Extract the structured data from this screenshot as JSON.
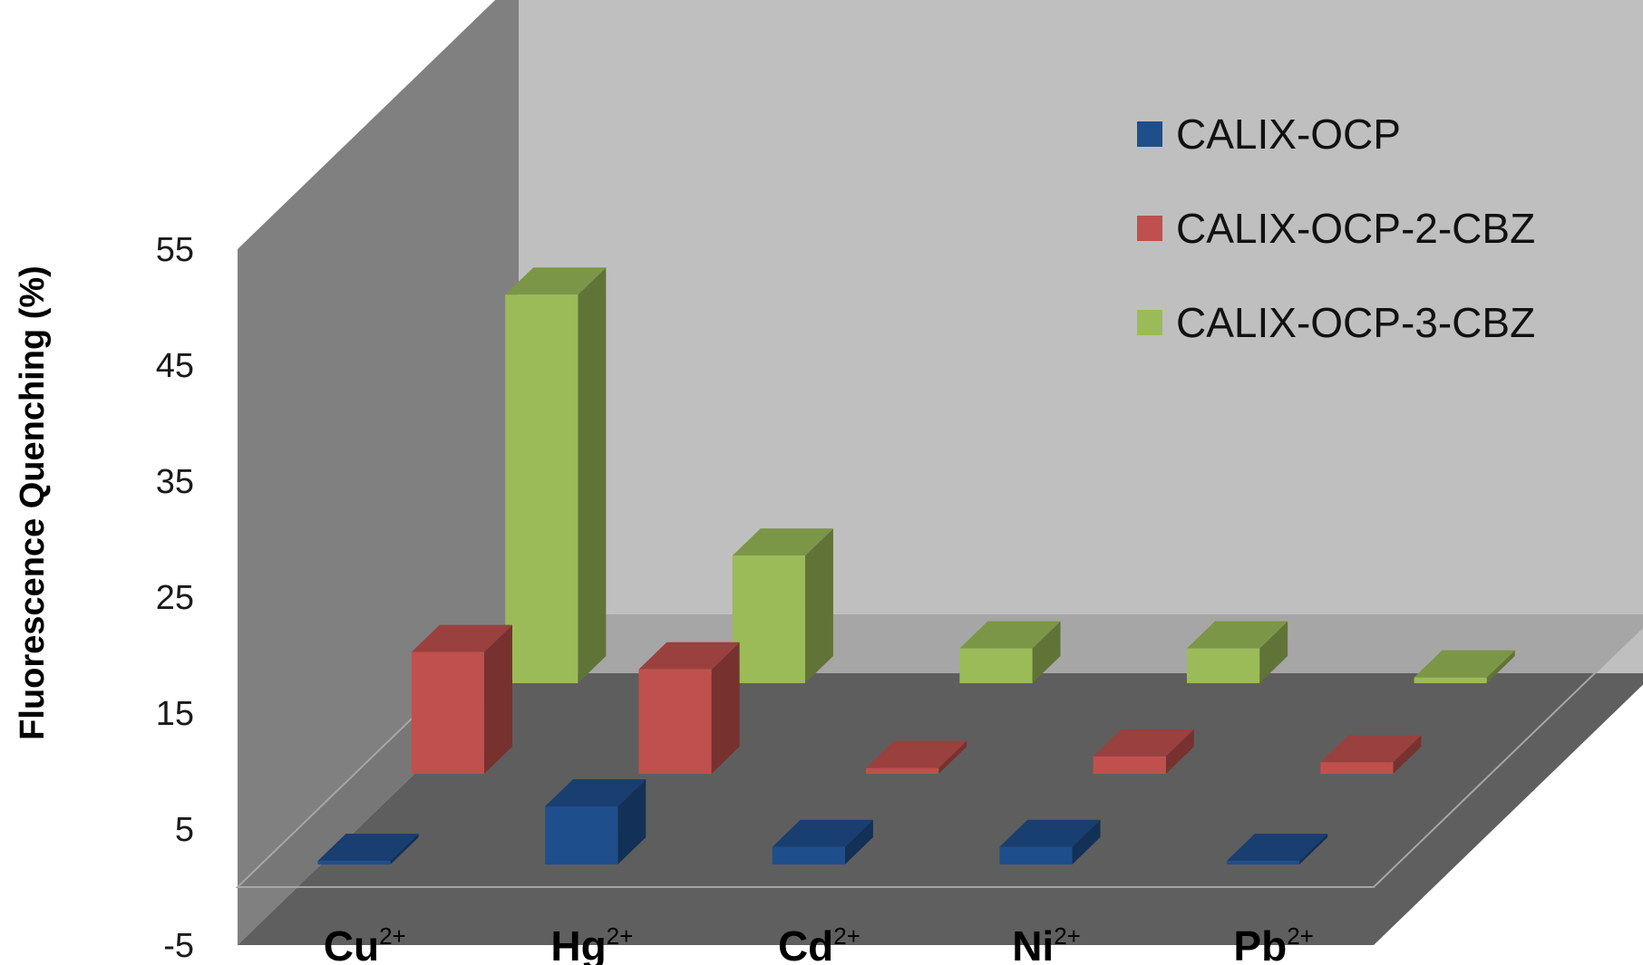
{
  "chart_data": {
    "type": "bar",
    "variant": "3d-clustered-depth",
    "title": "",
    "xlabel": "",
    "ylabel": "Fluorescence Quenching (%)",
    "categories": [
      {
        "base": "Cu",
        "charge": "2+"
      },
      {
        "base": "Hg",
        "charge": "2+"
      },
      {
        "base": "Cd",
        "charge": "2+"
      },
      {
        "base": "Ni",
        "charge": "2+"
      },
      {
        "base": "Pb",
        "charge": "2+"
      }
    ],
    "series": [
      {
        "name": "CALIX-OCP",
        "color": "#1f4e8c",
        "values": [
          0.3,
          5,
          1.5,
          1.5,
          0.3
        ]
      },
      {
        "name": "CALIX-OCP-2-CBZ",
        "color": "#c0504d",
        "values": [
          10.5,
          9,
          0.5,
          1.5,
          1
        ]
      },
      {
        "name": "CALIX-OCP-3-CBZ",
        "color": "#9bbb59",
        "values": [
          33.5,
          11,
          3,
          3,
          0.5
        ]
      }
    ],
    "ylim": [
      -5,
      55
    ],
    "yticks": [
      55,
      45,
      35,
      25,
      15,
      5,
      -5
    ],
    "grid": false,
    "legend_position": "top-right",
    "colors": {
      "back_wall": "#bfbfbf",
      "side_wall": "#808080",
      "floor": "#5f5f5f",
      "floor_edge": "#a6a6a6"
    }
  }
}
